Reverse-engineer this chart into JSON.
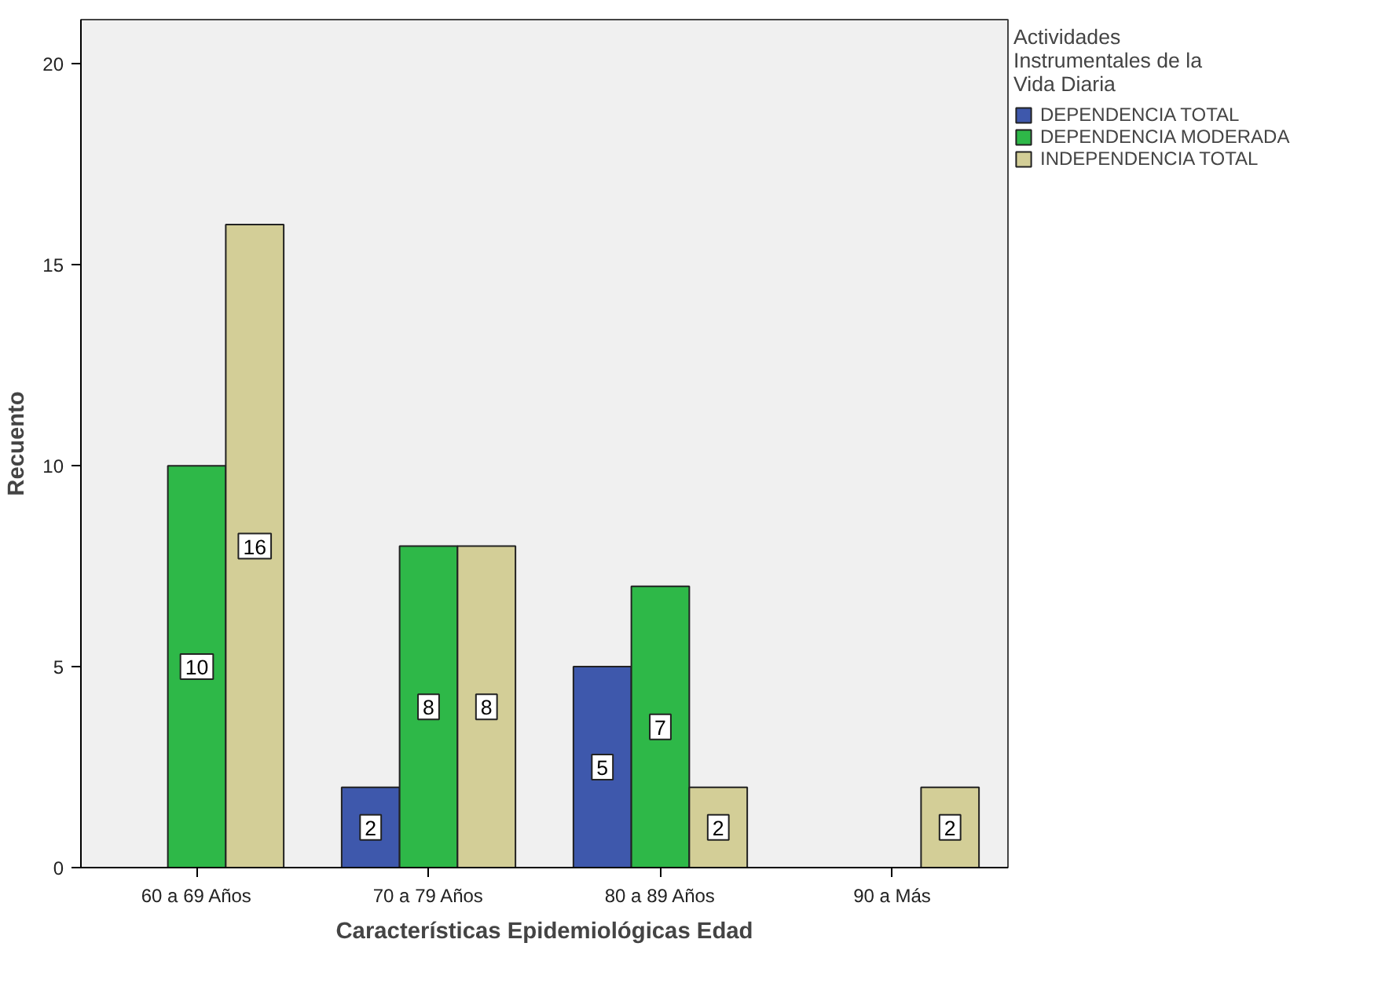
{
  "chart_data": {
    "type": "bar",
    "xlabel": "Características Epidemiológicas Edad",
    "ylabel": "Recuento",
    "legend_title": "Actividades Instrumentales de la Vida Diaria",
    "categories": [
      "60 a 69 Años",
      "70 a 79 Años",
      "80 a 89 Años",
      "90 a Más"
    ],
    "series": [
      {
        "name": "DEPENDENCIA TOTAL",
        "color": "#3e58ac",
        "values": [
          null,
          2,
          5,
          null
        ]
      },
      {
        "name": "DEPENDENCIA MODERADA",
        "color": "#2eb848",
        "values": [
          10,
          8,
          7,
          null
        ]
      },
      {
        "name": "INDEPENDENCIA TOTAL",
        "color": "#d3ce97",
        "values": [
          16,
          8,
          2,
          2
        ]
      }
    ],
    "ylim": [
      0,
      21.1
    ],
    "yticks": [
      0,
      5,
      10,
      15,
      20
    ],
    "grid": false,
    "legend": "right",
    "data_labels": true
  }
}
